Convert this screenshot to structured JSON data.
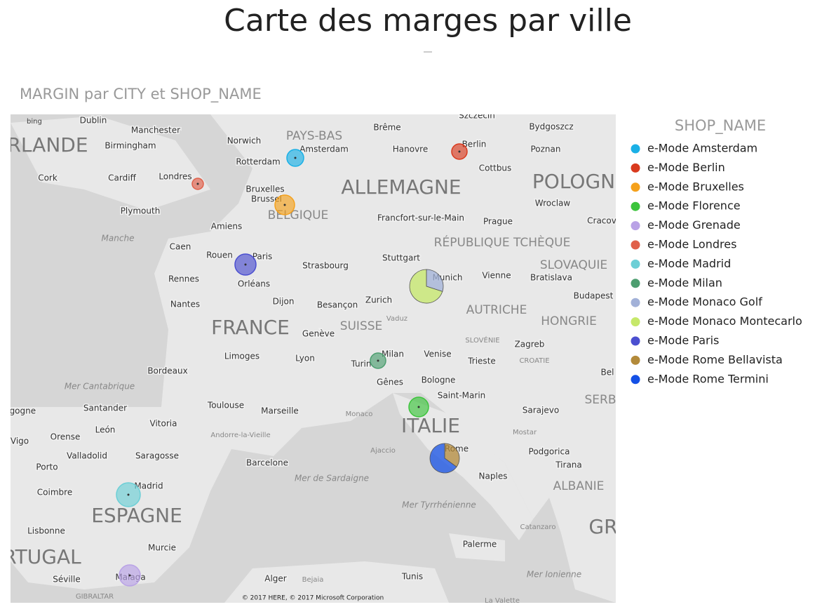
{
  "header": {
    "title": "Carte des marges par ville"
  },
  "visual": {
    "title": "MARGIN par CITY et SHOP_NAME",
    "logo": "bing",
    "copyright": "© 2017 HERE, © 2017 Microsoft Corporation"
  },
  "legend": {
    "title": "SHOP_NAME",
    "items": [
      {
        "label": "e-Mode Amsterdam",
        "color": "#1ab0e6"
      },
      {
        "label": "e-Mode Berlin",
        "color": "#d93a1e"
      },
      {
        "label": "e-Mode Bruxelles",
        "color": "#f5a11c"
      },
      {
        "label": "e-Mode Florence",
        "color": "#3cc43c"
      },
      {
        "label": "e-Mode Grenade",
        "color": "#b9a2e6"
      },
      {
        "label": "e-Mode Londres",
        "color": "#e0604a"
      },
      {
        "label": "e-Mode Madrid",
        "color": "#6ccfd6"
      },
      {
        "label": "e-Mode Milan",
        "color": "#4d9e70"
      },
      {
        "label": "e-Mode Monaco Golf",
        "color": "#a2b1d8"
      },
      {
        "label": "e-Mode Monaco Montecarlo",
        "color": "#c6e86a"
      },
      {
        "label": "e-Mode Paris",
        "color": "#4b4fd0"
      },
      {
        "label": "e-Mode Rome Bellavista",
        "color": "#b38a3a"
      },
      {
        "label": "e-Mode Rome Termini",
        "color": "#1450e6"
      }
    ]
  },
  "map": {
    "labels": [
      "Szczecin",
      "Dublin",
      "Manchester",
      "RLANDE",
      "Birmingham",
      "Norwich",
      "PAYS-BAS",
      "Amsterdam",
      "Brême",
      "Bydgoszcz",
      "Berlin",
      "Hanovre",
      "Poznan",
      "Rotterdam",
      "Cork",
      "Cardiff",
      "Londres",
      "ALLEMAGNE",
      "Cottbus",
      "POLOGN",
      "Bruxelles",
      "Brussel",
      "Wroclaw",
      "BELGIQUE",
      "Plymouth",
      "Francfort-sur-le-Main",
      "Prague",
      "Cracov",
      "Amiens",
      "Manche",
      "RÉPUBLIQUE TCHÈQUE",
      "Caen",
      "Rouen",
      "Paris",
      "Stuttgart",
      "SLOVAQUIE",
      "Strasbourg",
      "Munich",
      "Vienne",
      "Bratislava",
      "Rennes",
      "Orléans",
      "Budapest",
      "Zurich",
      "Nantes",
      "Dijon",
      "Besançon",
      "AUTRICHE",
      "Vaduz",
      "SUISSE",
      "HONGRIE",
      "FRANCE",
      "Genève",
      "SLOVÉNIE",
      "Zagreb",
      "Limoges",
      "Lyon",
      "Milan",
      "Venise",
      "Trieste",
      "CROATIE",
      "Bordeaux",
      "Turin",
      "Mer Cantabrique",
      "Gênes",
      "Bologne",
      "Bel",
      "Saint-Marin",
      "SERB",
      "Toulouse",
      "Marseille",
      "Santander",
      "rgogne",
      "Sarajevo",
      "Monaco",
      "ITALIE",
      "León",
      "Vitoria",
      "Vigo",
      "Orense",
      "Andorre-la-Vieille",
      "Mostar",
      "Valladolid",
      "Saragosse",
      "Ajaccio",
      "Rome",
      "Podgorica",
      "Porto",
      "Barcelone",
      "Tirana",
      "Naples",
      "Mer de Sardaigne",
      "ALBANIE",
      "Coimbre",
      "Madrid",
      "ESPAGNE",
      "Mer Tyrrhénienne",
      "Catanzaro",
      "Lisbonne",
      "GR",
      "Murcie",
      "Palerme",
      "RTUGAL",
      "Séville",
      "Malaga",
      "Alger",
      "Bejaia",
      "Tunis",
      "Mer Ionienne",
      "GIBRALTAR",
      "La Valette"
    ]
  }
}
